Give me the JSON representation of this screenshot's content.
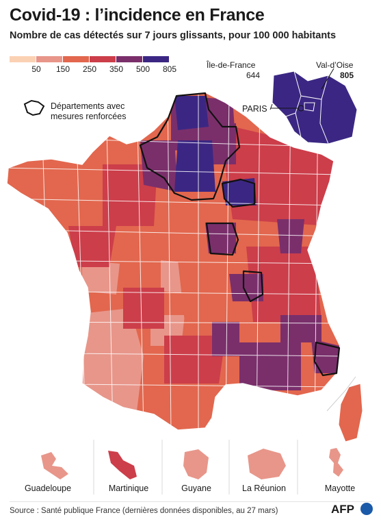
{
  "title": "Covid-19 : l’incidence en France",
  "subtitle": "Nombre de cas détectés sur 7 jours glissants, pour 100 000 habitants",
  "legend": {
    "colors": [
      "#fbd1b4",
      "#e8968a",
      "#e2674e",
      "#cc3e4a",
      "#7a2f6b",
      "#3b2783"
    ],
    "ticks": [
      "50",
      "150",
      "250",
      "350",
      "500",
      "805"
    ]
  },
  "annotations": {
    "idf_name": "Île-de-France",
    "idf_value": "644",
    "valdoise_name": "Val-d’Oise",
    "valdoise_value": "805",
    "paris": "PARIS",
    "reinforced_line1": "Départements avec",
    "reinforced_line2": "mesures renforcées"
  },
  "overseas": [
    "Guadeloupe",
    "Martinique",
    "Guyane",
    "La Réunion",
    "Mayotte"
  ],
  "source": "Source : Santé publique France (dernières données disponibles, au 27 mars)",
  "logo": "AFP"
}
